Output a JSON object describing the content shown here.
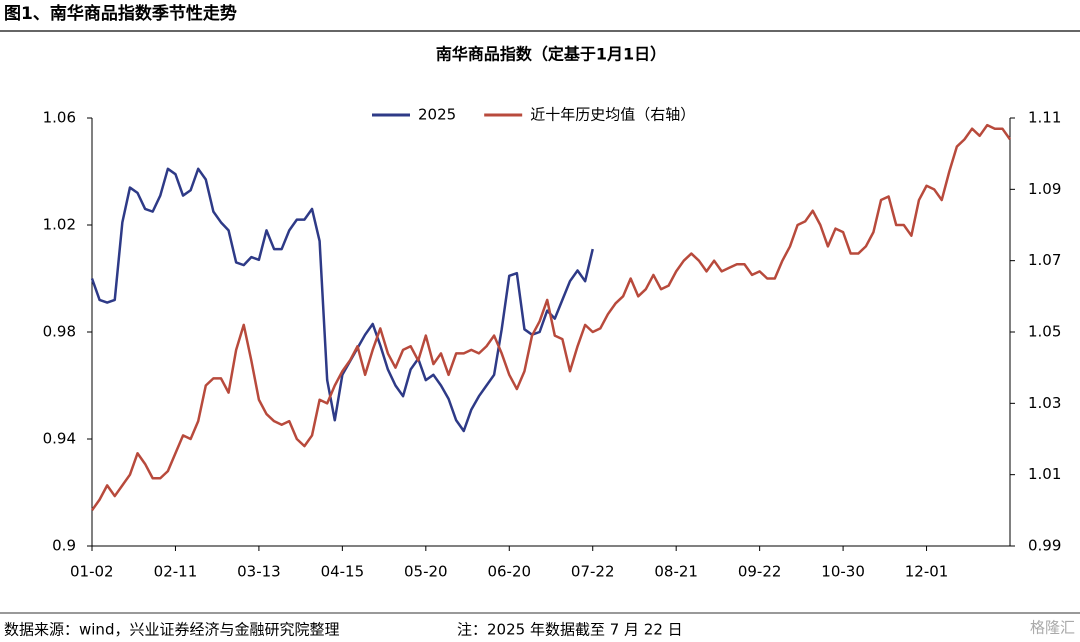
{
  "header": "图1、南华商品指数季节性走势",
  "source": "数据来源：wind，兴业证券经济与金融研究院整理",
  "note": "注：2025 年数据截至 7 月 22 日",
  "watermark": "格隆汇",
  "chart_data": {
    "type": "line",
    "title": "南华商品指数（定基于1月1日）",
    "categories": [
      "01-02",
      null,
      null,
      null,
      null,
      null,
      null,
      null,
      null,
      null,
      null,
      "02-11",
      null,
      null,
      null,
      null,
      null,
      null,
      null,
      null,
      null,
      null,
      "03-13",
      null,
      null,
      null,
      null,
      null,
      null,
      null,
      null,
      null,
      null,
      "04-15",
      null,
      null,
      null,
      null,
      null,
      null,
      null,
      null,
      null,
      null,
      "05-20",
      null,
      null,
      null,
      null,
      null,
      null,
      null,
      null,
      null,
      null,
      "06-20",
      null,
      null,
      null,
      null,
      null,
      null,
      null,
      null,
      null,
      null,
      "07-22",
      null,
      null,
      null,
      null,
      null,
      null,
      null,
      null,
      null,
      null,
      "08-21",
      null,
      null,
      null,
      null,
      null,
      null,
      null,
      null,
      null,
      null,
      "09-22",
      null,
      null,
      null,
      null,
      null,
      null,
      null,
      null,
      null,
      null,
      "10-30",
      null,
      null,
      null,
      null,
      null,
      null,
      null,
      null,
      null,
      null,
      "12-01",
      null,
      null,
      null,
      null,
      null,
      null,
      null,
      null,
      null,
      null,
      null
    ],
    "series": [
      {
        "name": "2025",
        "color": "#2e3a87",
        "axis": "y",
        "values": [
          1.0,
          0.992,
          0.991,
          0.992,
          1.021,
          1.034,
          1.032,
          1.026,
          1.025,
          1.031,
          1.041,
          1.039,
          1.031,
          1.033,
          1.041,
          1.037,
          1.025,
          1.021,
          1.018,
          1.006,
          1.005,
          1.008,
          1.007,
          1.018,
          1.011,
          1.011,
          1.018,
          1.022,
          1.022,
          1.026,
          1.014,
          0.962,
          0.947,
          0.964,
          0.969,
          0.974,
          0.979,
          0.983,
          0.975,
          0.966,
          0.96,
          0.956,
          0.966,
          0.97,
          0.962,
          0.964,
          0.96,
          0.955,
          0.947,
          0.943,
          0.951,
          0.956,
          0.96,
          0.964,
          0.981,
          1.001,
          1.002,
          0.981,
          0.979,
          0.98,
          0.988,
          0.985,
          0.992,
          0.999,
          1.003,
          0.999,
          1.011,
          null,
          null,
          null,
          null,
          null,
          null,
          null,
          null,
          null,
          null,
          null,
          null,
          null,
          null,
          null,
          null,
          null,
          null,
          null,
          null,
          null,
          null,
          null,
          null,
          null,
          null,
          null,
          null,
          null,
          null,
          null,
          null,
          null,
          null,
          null,
          null,
          null,
          null,
          null,
          null,
          null,
          null,
          null,
          null,
          null,
          null,
          null,
          null,
          null,
          null,
          null,
          null,
          null,
          null,
          null
        ]
      },
      {
        "name": "近十年历史均值（右轴）",
        "color": "#b84a3c",
        "axis": "y2",
        "values": [
          1.0,
          1.003,
          1.007,
          1.004,
          1.007,
          1.01,
          1.016,
          1.013,
          1.009,
          1.009,
          1.011,
          1.016,
          1.021,
          1.02,
          1.025,
          1.035,
          1.037,
          1.037,
          1.033,
          1.045,
          1.052,
          1.042,
          1.031,
          1.027,
          1.025,
          1.024,
          1.025,
          1.02,
          1.018,
          1.021,
          1.031,
          1.03,
          1.035,
          1.039,
          1.042,
          1.046,
          1.038,
          1.045,
          1.051,
          1.044,
          1.04,
          1.045,
          1.046,
          1.042,
          1.049,
          1.041,
          1.044,
          1.038,
          1.044,
          1.044,
          1.045,
          1.044,
          1.046,
          1.049,
          1.044,
          1.038,
          1.034,
          1.039,
          1.049,
          1.053,
          1.059,
          1.049,
          1.048,
          1.039,
          1.046,
          1.052,
          1.05,
          1.051,
          1.055,
          1.058,
          1.06,
          1.065,
          1.06,
          1.062,
          1.066,
          1.062,
          1.063,
          1.067,
          1.07,
          1.072,
          1.07,
          1.067,
          1.07,
          1.067,
          1.068,
          1.069,
          1.069,
          1.066,
          1.067,
          1.065,
          1.065,
          1.07,
          1.074,
          1.08,
          1.081,
          1.084,
          1.08,
          1.074,
          1.079,
          1.078,
          1.072,
          1.072,
          1.074,
          1.078,
          1.087,
          1.088,
          1.08,
          1.08,
          1.077,
          1.087,
          1.091,
          1.09,
          1.087,
          1.095,
          1.102,
          1.104,
          1.107,
          1.105,
          1.108,
          1.107,
          1.107,
          1.104
        ]
      }
    ],
    "ylim": [
      0.9,
      1.06
    ],
    "yticks": [
      0.9,
      0.94,
      0.98,
      1.02,
      1.06
    ],
    "y2lim": [
      0.99,
      1.11
    ],
    "y2ticks": [
      0.99,
      1.01,
      1.03,
      1.05,
      1.07,
      1.09,
      1.11
    ],
    "grid": false,
    "legend": "top"
  }
}
